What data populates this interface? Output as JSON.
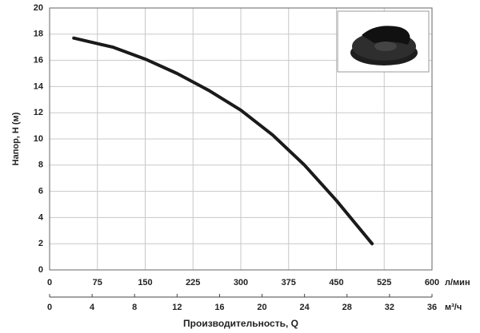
{
  "chart_data": {
    "type": "line",
    "y_label": "Напор, H (м)",
    "x_label": "Производительность, Q",
    "x_unit": "л/мин",
    "x2_unit": "м³/ч",
    "x": [
      38,
      100,
      150,
      200,
      250,
      300,
      350,
      400,
      450,
      506
    ],
    "series": [
      {
        "color": "#1a1a1a",
        "values": [
          17.7,
          17.0,
          16.1,
          15.0,
          13.7,
          12.2,
          10.3,
          8.0,
          5.3,
          2.0
        ]
      }
    ],
    "xlim": [
      0,
      600
    ],
    "xticks": [
      0,
      75,
      150,
      225,
      300,
      375,
      450,
      525,
      600
    ],
    "x2lim": [
      0,
      36
    ],
    "x2ticks": [
      0,
      4,
      8,
      12,
      16,
      20,
      24,
      28,
      32,
      36
    ],
    "ylim": [
      0,
      20
    ],
    "yticks": [
      0,
      2,
      4,
      6,
      8,
      10,
      12,
      14,
      16,
      18,
      20
    ],
    "grid": true
  }
}
